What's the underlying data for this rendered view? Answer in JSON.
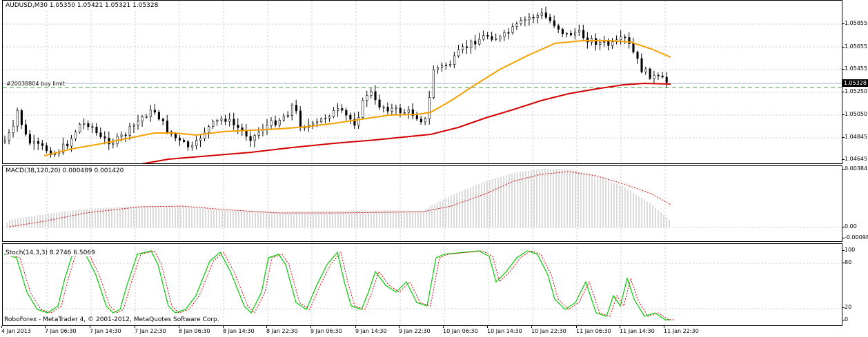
{
  "chart_title": "AUDUSD,M30  1.05350 1.05421 1.05321 1.05328",
  "order_label": "#20038804 buy limit",
  "macd_label": "MACD(38,120,20) 0.000489 0.001420",
  "stoch_label": "Stoch(14,3,3) 8.2746 6.5069",
  "copyright": "RoboForex - MetaTrader 4, © 2001-2012, MetaQuotes Software Corp.",
  "price_ticks": [
    "1.05855",
    "1.05655",
    "1.05455",
    "1.05250",
    "1.05050",
    "1.04845",
    "1.04645"
  ],
  "price_current": "1.05328",
  "macd_ticks": [
    "0.00384",
    "0.00",
    "-0.00098"
  ],
  "stoch_ticks": [
    "100",
    "80",
    "20",
    "0"
  ],
  "x_labels": [
    "4 Jan 2013",
    "7 Jan 06:30",
    "7 Jan 14:30",
    "7 Jan 22:30",
    "8 Jan 06:30",
    "8 Jan 14:30",
    "8 Jan 22:30",
    "9 Jan 06:30",
    "9 Jan 14:30",
    "9 Jan 22:30",
    "10 Jan 06:30",
    "10 Jan 14:30",
    "10 Jan 22:30",
    "11 Jan 06:30",
    "11 Jan 14:30",
    "11 Jan 22:30"
  ],
  "colors": {
    "ma_fast": "#f5a000",
    "ma_slow": "#d40000",
    "macd_hist": "#c0c0c0",
    "macd_signal": "#d40000",
    "stoch_main": "#00cc00",
    "stoch_signal": "#d40000",
    "grid": "#7f9fbf",
    "order_line": "#3c9f3c"
  }
}
